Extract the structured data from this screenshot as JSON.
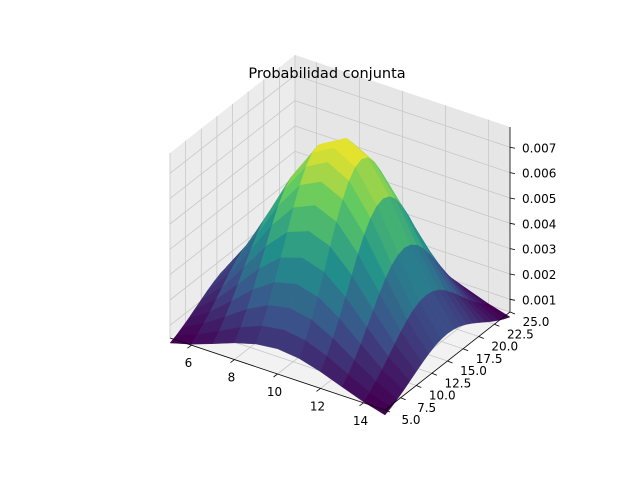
{
  "chart_data": {
    "type": "surface3d",
    "title": "Probabilidad conjunta",
    "xlabel": "",
    "ylabel": "",
    "zlabel": "",
    "colormap": "viridis",
    "colormap_stops": [
      "#440154",
      "#3b528b",
      "#21918c",
      "#5ec962",
      "#fde725"
    ],
    "x_range": [
      5,
      15
    ],
    "y_range": [
      5,
      25
    ],
    "z_range": [
      0.0005,
      0.0078
    ],
    "x_ticks": [
      "6",
      "8",
      "10",
      "12",
      "14"
    ],
    "x_tick_values": [
      6,
      8,
      10,
      12,
      14
    ],
    "y_ticks": [
      "5.0",
      "7.5",
      "10.0",
      "12.5",
      "15.0",
      "17.5",
      "20.0",
      "22.5",
      "25.0"
    ],
    "y_tick_values": [
      5,
      7.5,
      10,
      12.5,
      15,
      17.5,
      20,
      22.5,
      25
    ],
    "z_ticks": [
      "0.001",
      "0.002",
      "0.003",
      "0.004",
      "0.005",
      "0.006",
      "0.007"
    ],
    "z_tick_values": [
      0.001,
      0.002,
      0.003,
      0.004,
      0.005,
      0.006,
      0.007
    ],
    "surface": {
      "x_start": 5,
      "x_end": 15,
      "x_steps": 10,
      "y_start": 5,
      "y_end": 25,
      "y_steps": 20,
      "peak_x": 10,
      "peak_y": 15,
      "sigma_x": 2.8,
      "sigma_y": 5.5,
      "peak_value": 0.0078
    }
  }
}
